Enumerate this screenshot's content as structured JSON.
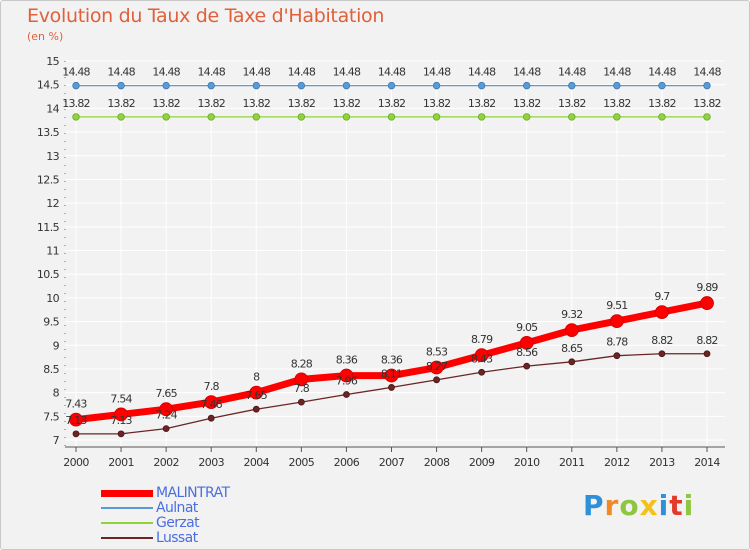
{
  "chart_data": {
    "type": "line",
    "title": "Evolution du Taux de Taxe d'Habitation",
    "subtitle": "(en %)",
    "x": [
      "2000",
      "2001",
      "2002",
      "2003",
      "2004",
      "2005",
      "2006",
      "2007",
      "2008",
      "2009",
      "2010",
      "2011",
      "2012",
      "2013",
      "2014"
    ],
    "ylim": [
      7,
      15
    ],
    "yticks": [
      "7",
      "7.5",
      "8",
      "8.5",
      "9",
      "9.5",
      "10",
      "10.5",
      "11",
      "11.5",
      "12",
      "12.5",
      "13",
      "13.5",
      "14",
      "14.5",
      "15"
    ],
    "grid": true,
    "legend_position": "bottom-left",
    "series": [
      {
        "name": "MALINTRAT",
        "color": "#ff0000",
        "values": [
          7.43,
          7.54,
          7.65,
          7.8,
          8,
          8.28,
          8.36,
          8.36,
          8.53,
          8.79,
          9.05,
          9.32,
          9.51,
          9.7,
          9.89
        ],
        "labels": [
          "7.43",
          "7.54",
          "7.65",
          "7.8",
          "8",
          "8.28",
          "8.36",
          "8.36",
          "8.53",
          "8.79",
          "9.05",
          "9.32",
          "9.51",
          "9.7",
          "9.89"
        ]
      },
      {
        "name": "Aulnat",
        "color": "#5b9bd5",
        "values": [
          14.48,
          14.48,
          14.48,
          14.48,
          14.48,
          14.48,
          14.48,
          14.48,
          14.48,
          14.48,
          14.48,
          14.48,
          14.48,
          14.48,
          14.48
        ],
        "labels": [
          "14.48",
          "14.48",
          "14.48",
          "14.48",
          "14.48",
          "14.48",
          "14.48",
          "14.48",
          "14.48",
          "14.48",
          "14.48",
          "14.48",
          "14.48",
          "14.48",
          "14.48"
        ]
      },
      {
        "name": "Gerzat",
        "color": "#8ed43a",
        "values": [
          13.82,
          13.82,
          13.82,
          13.82,
          13.82,
          13.82,
          13.82,
          13.82,
          13.82,
          13.82,
          13.82,
          13.82,
          13.82,
          13.82,
          13.82
        ],
        "labels": [
          "13.82",
          "13.82",
          "13.82",
          "13.82",
          "13.82",
          "13.82",
          "13.82",
          "13.82",
          "13.82",
          "13.82",
          "13.82",
          "13.82",
          "13.82",
          "13.82",
          "13.82"
        ]
      },
      {
        "name": "Lussat",
        "color": "#6b2525",
        "values": [
          7.13,
          7.13,
          7.24,
          7.46,
          7.65,
          7.8,
          7.96,
          8.11,
          8.27,
          8.43,
          8.56,
          8.65,
          8.78,
          8.82,
          8.82
        ],
        "labels": [
          "7.13",
          "7.13",
          "7.24",
          "7.46",
          "7.65",
          "7.8",
          "7.96",
          "8.11",
          "8.27",
          "8.43",
          "8.56",
          "8.65",
          "8.78",
          "8.82",
          "8.82"
        ]
      }
    ]
  },
  "brand": {
    "letters": [
      "P",
      "r",
      "o",
      "x",
      "i",
      "t",
      "i"
    ],
    "colors": [
      "#2f8fd8",
      "#f08a24",
      "#8ec63f",
      "#f2c21a",
      "#2f8fd8",
      "#e23a2b",
      "#8ec63f"
    ]
  }
}
